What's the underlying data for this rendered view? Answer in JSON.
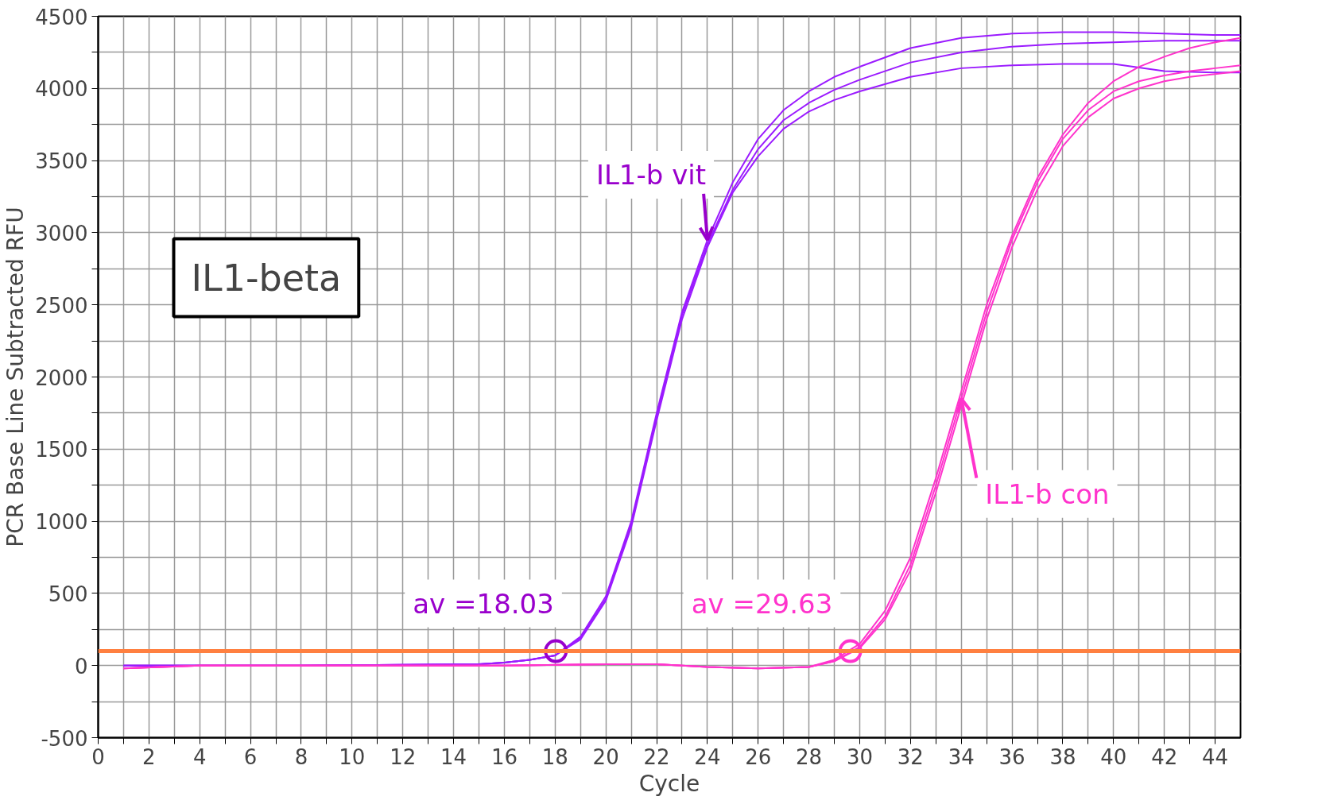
{
  "chart_data": {
    "type": "line",
    "title": "IL1-beta",
    "xlabel": "Cycle",
    "ylabel": "PCR Base Line Subtracted RFU",
    "xlim": [
      0,
      45
    ],
    "ylim": [
      -500,
      4500
    ],
    "xticks": [
      0,
      {
        "value": 1,
        "label": null
      },
      2,
      {
        "value": 3,
        "label": null
      },
      4,
      {
        "value": 5,
        "label": null
      },
      6,
      {
        "value": 7,
        "label": null
      },
      8,
      {
        "value": 9,
        "label": null
      },
      10,
      {
        "value": 11,
        "label": null
      },
      12,
      {
        "value": 13,
        "label": null
      },
      14,
      {
        "value": 15,
        "label": null
      },
      16,
      {
        "value": 17,
        "label": null
      },
      18,
      {
        "value": 19,
        "label": null
      },
      20,
      {
        "value": 21,
        "label": null
      },
      22,
      {
        "value": 23,
        "label": null
      },
      24,
      {
        "value": 25,
        "label": null
      },
      26,
      {
        "value": 27,
        "label": null
      },
      28,
      {
        "value": 29,
        "label": null
      },
      30,
      {
        "value": 31,
        "label": null
      },
      32,
      {
        "value": 33,
        "label": null
      },
      34,
      {
        "value": 35,
        "label": null
      },
      36,
      {
        "value": 37,
        "label": null
      },
      38,
      {
        "value": 39,
        "label": null
      },
      40,
      {
        "value": 41,
        "label": null
      },
      42,
      {
        "value": 43,
        "label": null
      },
      44
    ],
    "yticks": [
      -500,
      {
        "value": -250,
        "label": null
      },
      0,
      {
        "value": 250,
        "label": null
      },
      500,
      {
        "value": 750,
        "label": null
      },
      1000,
      {
        "value": 1250,
        "label": null
      },
      1500,
      {
        "value": 1750,
        "label": null
      },
      2000,
      {
        "value": 2250,
        "label": null
      },
      2500,
      {
        "value": 2750,
        "label": null
      },
      3000,
      {
        "value": 3250,
        "label": null
      },
      3500,
      {
        "value": 3750,
        "label": null
      },
      4000,
      {
        "value": 4250,
        "label": null
      },
      4500
    ],
    "grid": true,
    "marker": "none",
    "line_style": "solid",
    "series": [
      {
        "color": "#9b1bff",
        "x": [
          1,
          4,
          8,
          12,
          15,
          16,
          17,
          18,
          19,
          20,
          21,
          22,
          23,
          24,
          25,
          26,
          27,
          28,
          29,
          30,
          32,
          34,
          36,
          38,
          40,
          42,
          44,
          45
        ],
        "values": [
          0,
          0,
          0,
          5,
          10,
          20,
          40,
          70,
          200,
          480,
          1000,
          1750,
          2450,
          2950,
          3350,
          3650,
          3850,
          3980,
          4080,
          4150,
          4280,
          4350,
          4380,
          4390,
          4390,
          4380,
          4370,
          4370
        ]
      },
      {
        "color": "#9b1bff",
        "x": [
          1,
          4,
          8,
          12,
          15,
          16,
          17,
          18,
          19,
          20,
          21,
          22,
          23,
          24,
          25,
          26,
          27,
          28,
          29,
          30,
          32,
          34,
          36,
          38,
          40,
          42,
          44,
          45
        ],
        "values": [
          0,
          0,
          0,
          5,
          10,
          20,
          40,
          70,
          190,
          460,
          980,
          1720,
          2430,
          2920,
          3300,
          3580,
          3780,
          3900,
          3990,
          4060,
          4180,
          4250,
          4290,
          4310,
          4320,
          4330,
          4330,
          4330
        ]
      },
      {
        "color": "#9b1bff",
        "x": [
          1,
          4,
          8,
          12,
          15,
          16,
          17,
          18,
          19,
          20,
          21,
          22,
          23,
          24,
          25,
          26,
          27,
          28,
          29,
          30,
          32,
          34,
          36,
          38,
          40,
          42,
          44,
          45
        ],
        "values": [
          0,
          0,
          0,
          5,
          10,
          20,
          40,
          70,
          180,
          450,
          960,
          1700,
          2400,
          2900,
          3280,
          3530,
          3720,
          3840,
          3920,
          3980,
          4080,
          4140,
          4160,
          4170,
          4170,
          4120,
          4110,
          4110
        ]
      },
      {
        "color": "#ff33cc",
        "x": [
          1,
          4,
          8,
          12,
          16,
          20,
          22,
          24,
          26,
          28,
          29,
          30,
          31,
          32,
          33,
          34,
          35,
          36,
          37,
          38,
          39,
          40,
          41,
          42,
          43,
          44,
          45
        ],
        "values": [
          -20,
          0,
          0,
          0,
          0,
          10,
          10,
          -10,
          -20,
          -10,
          40,
          150,
          380,
          750,
          1300,
          1900,
          2500,
          2980,
          3380,
          3680,
          3900,
          4050,
          4150,
          4220,
          4280,
          4320,
          4350
        ]
      },
      {
        "color": "#ff33cc",
        "x": [
          1,
          4,
          8,
          12,
          16,
          20,
          22,
          24,
          26,
          28,
          29,
          30,
          31,
          32,
          33,
          34,
          35,
          36,
          37,
          38,
          39,
          40,
          41,
          42,
          43,
          44,
          45
        ],
        "values": [
          -20,
          0,
          0,
          0,
          0,
          10,
          10,
          -10,
          -20,
          -10,
          30,
          130,
          340,
          700,
          1250,
          1850,
          2450,
          2950,
          3350,
          3650,
          3850,
          3980,
          4050,
          4090,
          4120,
          4140,
          4160
        ]
      },
      {
        "color": "#ff33cc",
        "x": [
          1,
          4,
          8,
          12,
          16,
          20,
          22,
          24,
          26,
          28,
          29,
          30,
          31,
          32,
          33,
          34,
          35,
          36,
          37,
          38,
          39,
          40,
          41,
          42,
          43,
          44,
          45
        ],
        "values": [
          -20,
          0,
          0,
          0,
          0,
          10,
          10,
          -10,
          -20,
          -10,
          30,
          120,
          320,
          660,
          1200,
          1800,
          2400,
          2900,
          3300,
          3600,
          3800,
          3930,
          4000,
          4050,
          4080,
          4100,
          4120
        ]
      }
    ],
    "ref_lines": [
      {
        "axis": "y",
        "value": 100,
        "color": "#ff8040"
      }
    ],
    "annotations": [
      {
        "text": "IL1-b vit",
        "x": 24,
        "y": 2950
      },
      {
        "text": "IL1-b con",
        "x": 34,
        "y": 1850
      },
      {
        "text": "av =18.03",
        "x": 18.03,
        "y": 100
      },
      {
        "text": "av =29.63",
        "x": 29.63,
        "y": 100
      }
    ]
  }
}
